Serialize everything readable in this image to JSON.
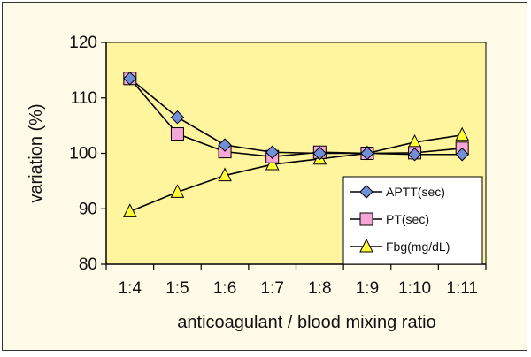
{
  "chart_data": {
    "type": "line",
    "title": "",
    "xlabel": "anticoagulant / blood mixing ratio",
    "ylabel": "variation (%)",
    "ylim": [
      80,
      120
    ],
    "yticks": [
      80,
      90,
      100,
      110,
      120
    ],
    "grid": false,
    "legend_position": "bottom-right",
    "categories": [
      "1:4",
      "1:5",
      "1:6",
      "1:7",
      "1:8",
      "1:9",
      "1:10",
      "1:11"
    ],
    "series": [
      {
        "name": "APTT(sec)",
        "marker": "diamond",
        "color": "#6f8fd8",
        "values": [
          113.5,
          106.5,
          101.5,
          100.2,
          100.0,
          100.0,
          99.8,
          99.8
        ]
      },
      {
        "name": "PT(sec)",
        "marker": "square",
        "color": "#f6a6d6",
        "values": [
          113.5,
          103.5,
          100.3,
          99.4,
          100.2,
          100.0,
          100.1,
          100.9
        ]
      },
      {
        "name": "Fbg(mg/dL)",
        "marker": "triangle",
        "color": "#ffff33",
        "values": [
          89.5,
          93.0,
          96.0,
          98.0,
          99.0,
          100.0,
          102.0,
          103.3
        ]
      }
    ],
    "plot_background": "#fff59e"
  }
}
